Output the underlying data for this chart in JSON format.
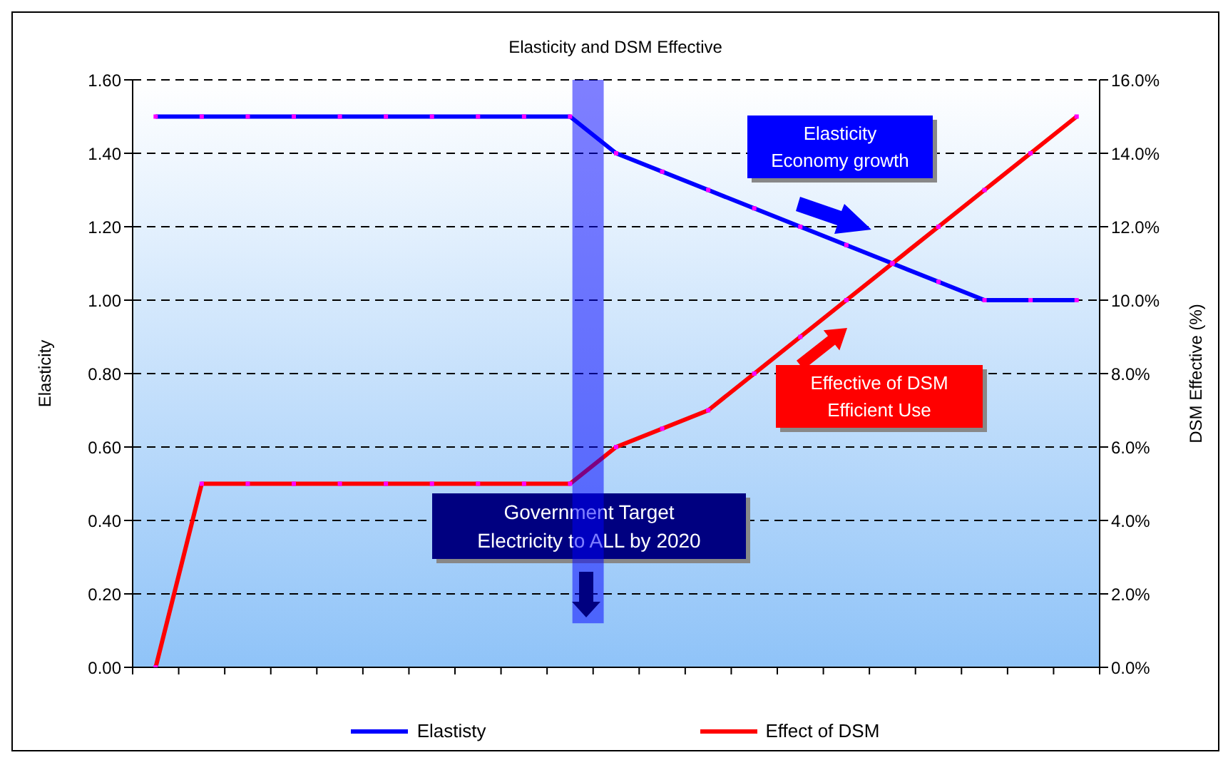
{
  "chart_data": {
    "type": "line",
    "title": "Elasticity and DSM Effective",
    "ylabel": "Elasticity",
    "y2label": "DSM Effective (%)",
    "categories": [
      null,
      null,
      null,
      null,
      null,
      null,
      null,
      null,
      null,
      null,
      null,
      null,
      null,
      null,
      null,
      null,
      null,
      null,
      null,
      null,
      null
    ],
    "series": [
      {
        "name": "Elastisty",
        "color": "#0000ff",
        "values": [
          1.5,
          1.5,
          1.5,
          1.5,
          1.5,
          1.5,
          1.5,
          1.5,
          1.5,
          1.5,
          1.4,
          1.35,
          1.3,
          1.25,
          1.2,
          1.15,
          1.1,
          1.05,
          1.0,
          1.0,
          1.0
        ]
      },
      {
        "name": "Effect of DSM",
        "color": "#ff0000",
        "axis": "y2",
        "values": [
          0,
          5,
          5,
          5,
          5,
          5,
          5,
          5,
          5,
          5,
          6,
          6.5,
          7,
          8,
          9,
          10,
          11,
          12,
          13,
          14,
          15
        ]
      }
    ],
    "ylim": [
      0,
      1.6
    ],
    "yticks": [
      {
        "value": 0,
        "label": "0.00"
      },
      {
        "value": 0.2,
        "label": "0.20"
      },
      {
        "value": 0.4,
        "label": "0.40"
      },
      {
        "value": 0.6,
        "label": "0.60"
      },
      {
        "value": 0.8,
        "label": "0.80"
      },
      {
        "value": 1.0,
        "label": "1.00"
      },
      {
        "value": 1.2,
        "label": "1.20"
      },
      {
        "value": 1.4,
        "label": "1.40"
      },
      {
        "value": 1.6,
        "label": "1.60"
      }
    ],
    "y2lim": [
      0,
      16
    ],
    "y2ticks": [
      {
        "value": 0,
        "label": "0.0%"
      },
      {
        "value": 2,
        "label": "2.0%"
      },
      {
        "value": 4,
        "label": "4.0%"
      },
      {
        "value": 6,
        "label": "6.0%"
      },
      {
        "value": 8,
        "label": "8.0%"
      },
      {
        "value": 10,
        "label": "10.0%"
      },
      {
        "value": 12,
        "label": "12.0%"
      },
      {
        "value": 14,
        "label": "14.0%"
      },
      {
        "value": 16,
        "label": "16.0%"
      }
    ],
    "annotations": [
      "Elasticity\nEconomy growth",
      "Effective of DSM\nEfficient Use",
      "Government Target\nElectricity to ALL by 2020"
    ],
    "grid": "y",
    "legend": "bottom",
    "marker": "square",
    "line_style": "solid"
  }
}
